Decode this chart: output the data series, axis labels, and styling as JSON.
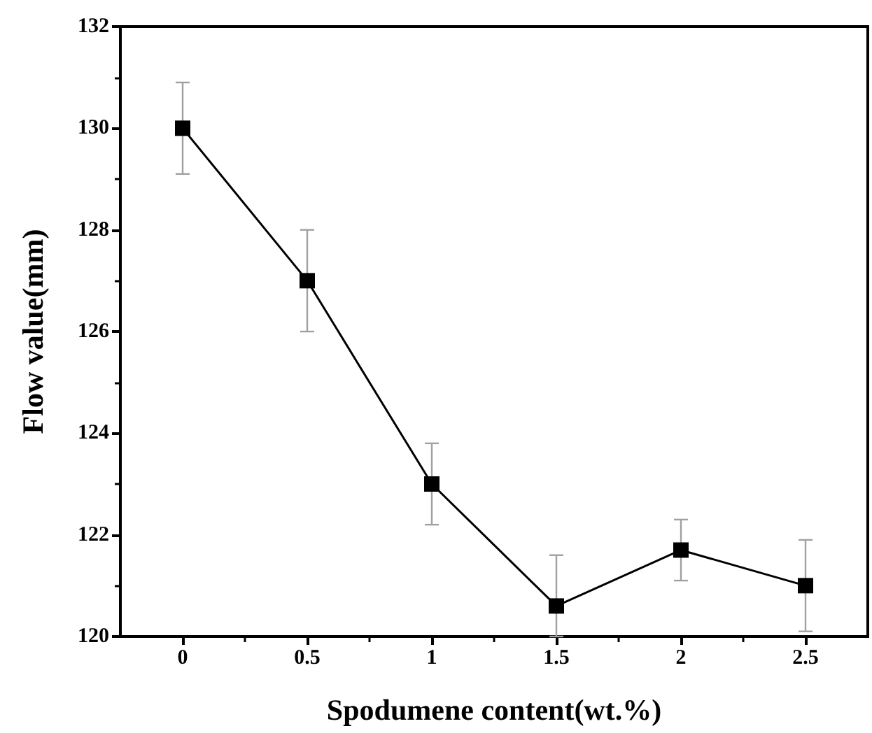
{
  "chart_data": {
    "type": "line",
    "xlabel": "Spodumene content(wt.%)",
    "ylabel": "Flow value(mm)",
    "x": [
      0,
      0.5,
      1,
      1.5,
      2,
      2.5
    ],
    "series": [
      {
        "color": "#000000",
        "values": [
          130,
          127,
          123,
          120.6,
          121.7,
          121.0
        ],
        "errors": [
          0.9,
          1,
          0.8,
          [
            120,
            121.6
          ],
          0.6,
          0.9
        ]
      }
    ],
    "xlim": [
      -0.25,
      2.75
    ],
    "xticks": [
      0,
      0.5,
      1,
      1.5,
      2,
      2.5
    ],
    "ylim": [
      120,
      132
    ],
    "yticks": [
      120,
      122,
      124,
      126,
      128,
      130,
      132
    ],
    "marker": "square",
    "line_style": "solid"
  }
}
